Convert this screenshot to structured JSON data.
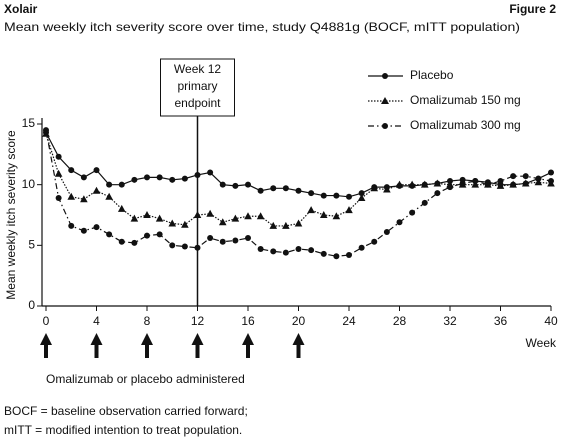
{
  "chart_data": {
    "type": "line",
    "brand": "Xolair",
    "figure_label": "Figure 2",
    "title": "Mean weekly itch severity score over time, study Q4881g (BOCF, mITT population)",
    "y_label": "Mean weekly itch severity score",
    "x_label": "Week",
    "annotation": [
      "Week 12",
      "primary",
      "endpoint"
    ],
    "reference_x": 12,
    "dosing_weeks": [
      0,
      4,
      8,
      12,
      16,
      20
    ],
    "dosing_label": "Omalizumab or placebo administered",
    "footnotes": [
      "BOCF = baseline observation carried forward;",
      "mITT = modified intention to treat population."
    ],
    "x": [
      0,
      1,
      2,
      3,
      4,
      5,
      6,
      7,
      8,
      9,
      10,
      11,
      12,
      13,
      14,
      15,
      16,
      17,
      18,
      19,
      20,
      21,
      22,
      23,
      24,
      25,
      26,
      27,
      28,
      29,
      30,
      31,
      32,
      33,
      34,
      35,
      36,
      37,
      38,
      39,
      40
    ],
    "series": [
      {
        "name": "Placebo",
        "color": "#111111",
        "marker": "circle",
        "line_style": "solid",
        "values": [
          14.3,
          12.3,
          11.2,
          10.6,
          11.2,
          10,
          10,
          10.4,
          10.6,
          10.6,
          10.4,
          10.5,
          10.8,
          11,
          10,
          9.9,
          10,
          9.5,
          9.7,
          9.7,
          9.5,
          9.3,
          9.1,
          9.1,
          9,
          9.3,
          9.8,
          9.8,
          9.9,
          9.9,
          10,
          10.1,
          10.3,
          10.4,
          10.3,
          10.2,
          10,
          10,
          10.1,
          10.5,
          11
        ]
      },
      {
        "name": "Omalizumab 150 mg",
        "color": "#111111",
        "marker": "triangle",
        "line_style": "dotted",
        "values": [
          14.2,
          10.9,
          9,
          8.8,
          9.5,
          9,
          8,
          7.2,
          7.5,
          7.2,
          6.8,
          6.7,
          7.5,
          7.6,
          6.9,
          7.2,
          7.4,
          7.4,
          6.6,
          6.6,
          6.8,
          7.9,
          7.5,
          7.4,
          7.9,
          8.9,
          9.7,
          9.6,
          10,
          10,
          10,
          10.1,
          10,
          10,
          10,
          10,
          9.9,
          10,
          10.1,
          10.2,
          10.1
        ]
      },
      {
        "name": "Omalizumab 300 mg",
        "color": "#111111",
        "marker": "circle",
        "line_style": "dashdot",
        "values": [
          14.5,
          8.9,
          6.6,
          6.2,
          6.5,
          5.9,
          5.3,
          5.2,
          5.8,
          5.9,
          5,
          4.9,
          4.8,
          5.6,
          5.3,
          5.4,
          5.6,
          4.7,
          4.5,
          4.4,
          4.7,
          4.6,
          4.3,
          4.1,
          4.2,
          4.8,
          5.3,
          6.1,
          6.9,
          7.7,
          8.5,
          9.3,
          9.8,
          10.1,
          10.3,
          10,
          10.3,
          10.7,
          10.7,
          10.5,
          10.3
        ]
      }
    ],
    "xlim": [
      0,
      40
    ],
    "xticks": [
      0,
      4,
      8,
      12,
      16,
      20,
      24,
      28,
      32,
      36,
      40
    ],
    "ylim": [
      0,
      15
    ],
    "yticks": [
      0,
      5,
      10,
      15
    ]
  }
}
